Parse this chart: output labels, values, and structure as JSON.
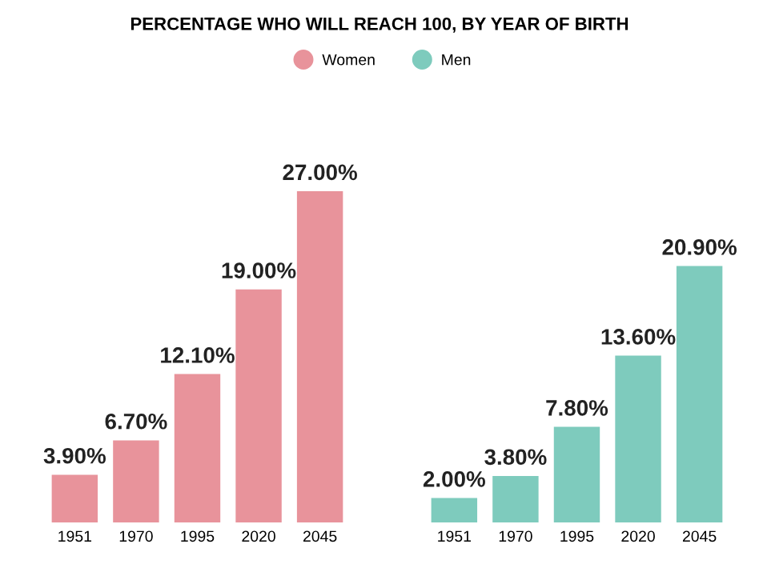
{
  "chart_data": [
    {
      "type": "bar",
      "title": "PERCENTAGE WHO WILL REACH 100, BY YEAR OF BIRTH",
      "legend": "top",
      "categories": [
        "1951",
        "1970",
        "1995",
        "2020",
        "2045"
      ],
      "series": [
        {
          "name": "Women",
          "color": "#e8939b",
          "values": [
            3.9,
            6.7,
            12.1,
            19.0,
            27.0
          ],
          "value_labels": [
            "3.90%",
            "6.70%",
            "12.10%",
            "19.00%",
            "27.00%"
          ]
        }
      ]
    },
    {
      "type": "bar",
      "legend": "top",
      "categories": [
        "1951",
        "1970",
        "1995",
        "2020",
        "2045"
      ],
      "series": [
        {
          "name": "Men",
          "color": "#7ecbbd",
          "values": [
            2.0,
            3.8,
            7.8,
            13.6,
            20.9
          ],
          "value_labels": [
            "2.00%",
            "3.80%",
            "7.80%",
            "13.60%",
            "20.90%"
          ]
        }
      ]
    }
  ]
}
